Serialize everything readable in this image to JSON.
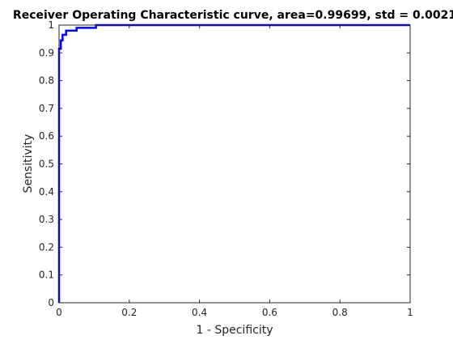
{
  "chart_data": {
    "type": "line",
    "title": "Receiver Operating Characteristic curve, area=0.99699, std = 0.0021",
    "xlabel": "1 - Specificity",
    "ylabel": "Sensitivity",
    "xlim": [
      0,
      1
    ],
    "ylim": [
      0,
      1
    ],
    "xticks": [
      0,
      0.2,
      0.4,
      0.6,
      0.8,
      1
    ],
    "xtick_labels": [
      "0",
      "0.2",
      "0.4",
      "0.6",
      "0.8",
      "1"
    ],
    "yticks": [
      0,
      0.1,
      0.2,
      0.3,
      0.4,
      0.5,
      0.6,
      0.7,
      0.8,
      0.9,
      1
    ],
    "ytick_labels": [
      "0",
      "0.1",
      "0.2",
      "0.3",
      "0.4",
      "0.5",
      "0.6",
      "0.7",
      "0.8",
      "0.9",
      "1"
    ],
    "grid": false,
    "line_color": "#0000ff",
    "series": [
      {
        "x": [
          0,
          0,
          0.005,
          0.005,
          0.01,
          0.01,
          0.02,
          0.02,
          0.05,
          0.05,
          0.105,
          0.105,
          1.0
        ],
        "y": [
          0,
          0.915,
          0.915,
          0.945,
          0.945,
          0.965,
          0.965,
          0.98,
          0.98,
          0.99,
          0.99,
          1.0,
          1.0
        ]
      }
    ]
  }
}
